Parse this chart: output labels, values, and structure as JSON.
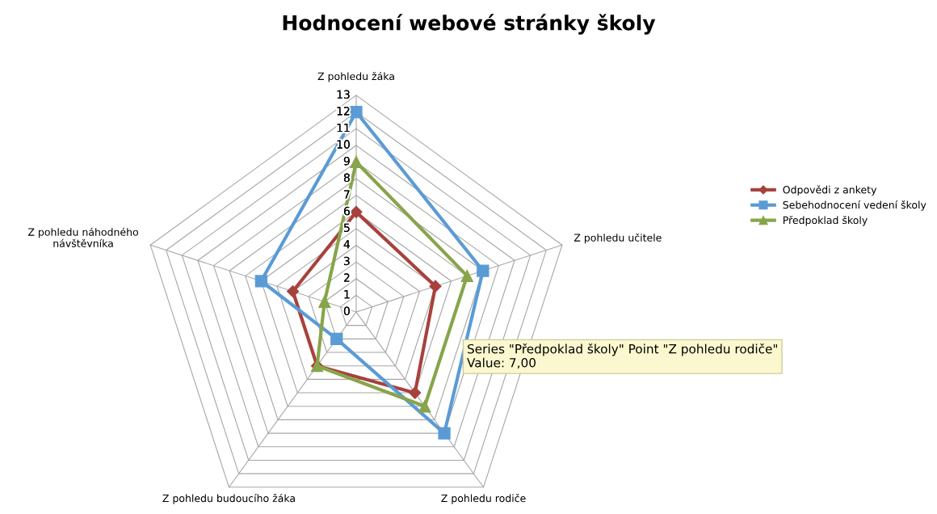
{
  "chart_data": {
    "type": "radar",
    "title": "Hodnocení webové stránky školy",
    "categories": [
      "Z pohledu žáka",
      "Z pohledu učitele",
      "Z pohledu rodiče",
      "Z pohledu budoucího žáka",
      "Z pohledu náhodného\nnávštěvníka"
    ],
    "series": [
      {
        "name": "Odpovědi z ankety",
        "color": "#a8413c",
        "marker": "diamond",
        "values": [
          6,
          5,
          6,
          4,
          4
        ]
      },
      {
        "name": "Sebehodnocení vedení školy",
        "color": "#5b9bd5",
        "marker": "square",
        "values": [
          12,
          8,
          9,
          2,
          6
        ]
      },
      {
        "name": "Předpoklad školy",
        "color": "#87a54a",
        "marker": "triangle",
        "values": [
          9,
          7,
          7,
          4,
          2
        ]
      }
    ],
    "ylim": [
      0,
      13
    ],
    "yticks": [
      0,
      1,
      2,
      3,
      4,
      5,
      6,
      7,
      8,
      9,
      10,
      11,
      12,
      13
    ],
    "grid": true,
    "legend": "right",
    "annotations": [
      "Series \"Předpoklad školy\" Point \"Z pohledu rodiče\"\nValue: 7,00"
    ]
  }
}
